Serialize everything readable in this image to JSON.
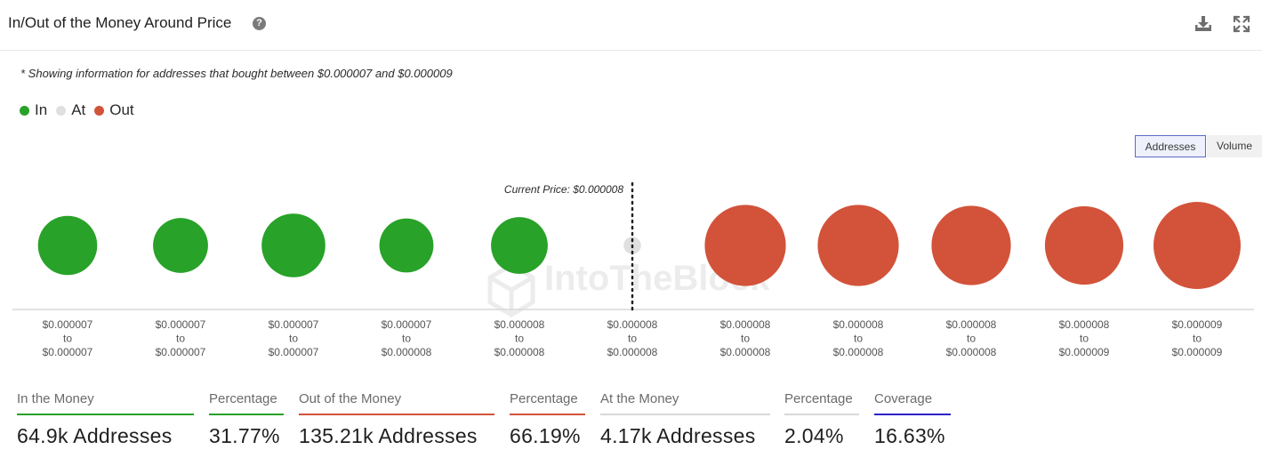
{
  "header": {
    "title": "In/Out of the Money Around Price",
    "help_icon": "question-circle-icon",
    "download_icon": "download-icon",
    "expand_icon": "expand-icon"
  },
  "note": "* Showing information for addresses that bought between $0.000007 and $0.000009",
  "legend": [
    {
      "label": "In",
      "color": "#28a228"
    },
    {
      "label": "At",
      "color": "#e0e0e0"
    },
    {
      "label": "Out",
      "color": "#d2533a"
    }
  ],
  "toggle": {
    "addresses": "Addresses",
    "volume": "Volume",
    "selected": "Addresses"
  },
  "watermark": "IntoTheBlock",
  "chart_data": {
    "type": "bubble",
    "current_price_label": "Current Price: $0.000008",
    "current_price_bucket_index": 5,
    "buckets": [
      {
        "from": "$0.000007",
        "to": "$0.000007",
        "status": "In",
        "relative_size": 0.68
      },
      {
        "from": "$0.000007",
        "to": "$0.000007",
        "status": "In",
        "relative_size": 0.63
      },
      {
        "from": "$0.000007",
        "to": "$0.000007",
        "status": "In",
        "relative_size": 0.73
      },
      {
        "from": "$0.000007",
        "to": "$0.000008",
        "status": "In",
        "relative_size": 0.62
      },
      {
        "from": "$0.000008",
        "to": "$0.000008",
        "status": "In",
        "relative_size": 0.65
      },
      {
        "from": "$0.000008",
        "to": "$0.000008",
        "status": "At",
        "relative_size": 0.2
      },
      {
        "from": "$0.000008",
        "to": "$0.000008",
        "status": "Out",
        "relative_size": 0.93
      },
      {
        "from": "$0.000008",
        "to": "$0.000008",
        "status": "Out",
        "relative_size": 0.93
      },
      {
        "from": "$0.000008",
        "to": "$0.000008",
        "status": "Out",
        "relative_size": 0.91
      },
      {
        "from": "$0.000008",
        "to": "$0.000009",
        "status": "Out",
        "relative_size": 0.9
      },
      {
        "from": "$0.000009",
        "to": "$0.000009",
        "status": "Out",
        "relative_size": 1.0
      }
    ],
    "range_connector": "to"
  },
  "stats": [
    {
      "label": "In the Money",
      "value": "64.9k Addresses",
      "color": "#28a228"
    },
    {
      "label": "Percentage",
      "value": "31.77%",
      "color": "#28a228"
    },
    {
      "label": "Out of the Money",
      "value": "135.21k Addresses",
      "color": "#d2533a"
    },
    {
      "label": "Percentage",
      "value": "66.19%",
      "color": "#d2533a"
    },
    {
      "label": "At the Money",
      "value": "4.17k Addresses",
      "color": "#d8d8d8"
    },
    {
      "label": "Percentage",
      "value": "2.04%",
      "color": "#d8d8d8"
    },
    {
      "label": "Coverage",
      "value": "16.63%",
      "color": "#2d22c8"
    }
  ]
}
